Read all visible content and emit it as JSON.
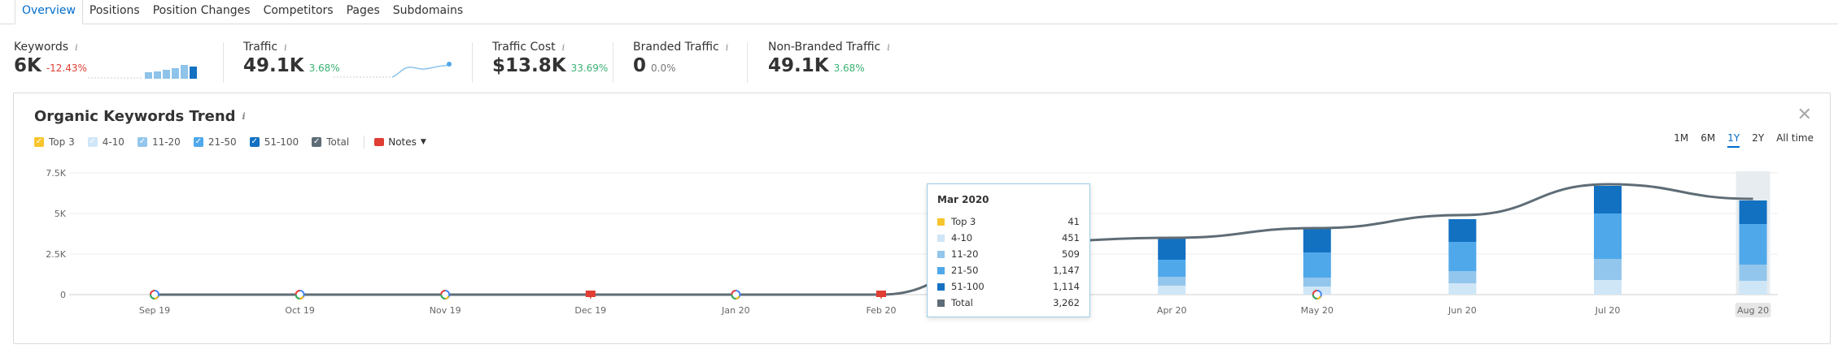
{
  "tabs": [
    {
      "label": "Overview",
      "active": true
    },
    {
      "label": "Positions",
      "active": false
    },
    {
      "label": "Position Changes",
      "active": false
    },
    {
      "label": "Competitors",
      "active": false
    },
    {
      "label": "Pages",
      "active": false
    },
    {
      "label": "Subdomains",
      "active": false
    }
  ],
  "metrics": {
    "keywords": {
      "label": "Keywords",
      "value": "6K",
      "change": "-12.43%"
    },
    "traffic": {
      "label": "Traffic",
      "value": "49.1K",
      "change": "3.68%"
    },
    "traffic_cost": {
      "label": "Traffic Cost",
      "value": "$13.8K",
      "change": "33.69%"
    },
    "branded": {
      "label": "Branded Traffic",
      "value": "0",
      "change": "0.0%"
    },
    "non_branded": {
      "label": "Non-Branded Traffic",
      "value": "49.1K",
      "change": "3.68%"
    },
    "info_glyph": "i"
  },
  "panel": {
    "title": "Organic Keywords Trend",
    "close_glyph": "✕",
    "notes_label": "Notes"
  },
  "legend": [
    {
      "label": "Top 3",
      "color": "#f9c52d"
    },
    {
      "label": "4-10",
      "color": "#cfe6f7"
    },
    {
      "label": "11-20",
      "color": "#93c6ec"
    },
    {
      "label": "21-50",
      "color": "#4fa8ea"
    },
    {
      "label": "51-100",
      "color": "#1371c2"
    },
    {
      "label": "Total",
      "color": "#5e6c76"
    }
  ],
  "ranges": [
    {
      "label": "1M",
      "active": false
    },
    {
      "label": "6M",
      "active": false
    },
    {
      "label": "1Y",
      "active": true
    },
    {
      "label": "2Y",
      "active": false
    },
    {
      "label": "All time",
      "active": false
    }
  ],
  "tooltip": {
    "title": "Mar 2020",
    "rows": [
      {
        "label": "Top 3",
        "value": "41",
        "color": "#f9c52d"
      },
      {
        "label": "4-10",
        "value": "451",
        "color": "#cfe6f7"
      },
      {
        "label": "11-20",
        "value": "509",
        "color": "#93c6ec"
      },
      {
        "label": "21-50",
        "value": "1,147",
        "color": "#4fa8ea"
      },
      {
        "label": "51-100",
        "value": "1,114",
        "color": "#1371c2"
      },
      {
        "label": "Total",
        "value": "3,262",
        "color": "#5e6c76"
      }
    ]
  },
  "chart_data": {
    "type": "bar",
    "title": "Organic Keywords Trend",
    "categories": [
      "Sep 19",
      "Oct 19",
      "Nov 19",
      "Dec 19",
      "Jan 20",
      "Feb 20",
      "Mar 20",
      "Apr 20",
      "May 20",
      "Jun 20",
      "Jul 20",
      "Aug 20"
    ],
    "y_ticks": [
      "0",
      "2.5K",
      "5K",
      "7.5K"
    ],
    "ylim": [
      0,
      7500
    ],
    "series": [
      {
        "name": "4-10",
        "color": "#cfe6f7",
        "values": [
          0,
          0,
          0,
          0,
          0,
          0,
          451,
          550,
          500,
          700,
          900,
          850
        ]
      },
      {
        "name": "11-20",
        "color": "#93c6ec",
        "values": [
          0,
          0,
          0,
          0,
          0,
          0,
          509,
          550,
          550,
          750,
          1300,
          1000
        ]
      },
      {
        "name": "21-50",
        "color": "#4fa8ea",
        "values": [
          0,
          0,
          0,
          0,
          0,
          0,
          1147,
          1050,
          1550,
          1800,
          2800,
          2500
        ]
      },
      {
        "name": "51-100",
        "color": "#1371c2",
        "values": [
          0,
          0,
          0,
          0,
          0,
          0,
          1114,
          1350,
          1500,
          1400,
          1700,
          1450
        ]
      }
    ],
    "total": {
      "name": "Total",
      "color": "#5e6c76",
      "values": [
        0,
        0,
        0,
        0,
        0,
        0,
        3262,
        3500,
        4100,
        4900,
        6800,
        5900
      ]
    },
    "highlight_category": "Aug 20",
    "google_update_markers": [
      "Sep 19",
      "Oct 19",
      "Nov 19",
      "Jan 20",
      "May 20"
    ],
    "note_markers": [
      "Dec 19",
      "Feb 20"
    ]
  }
}
